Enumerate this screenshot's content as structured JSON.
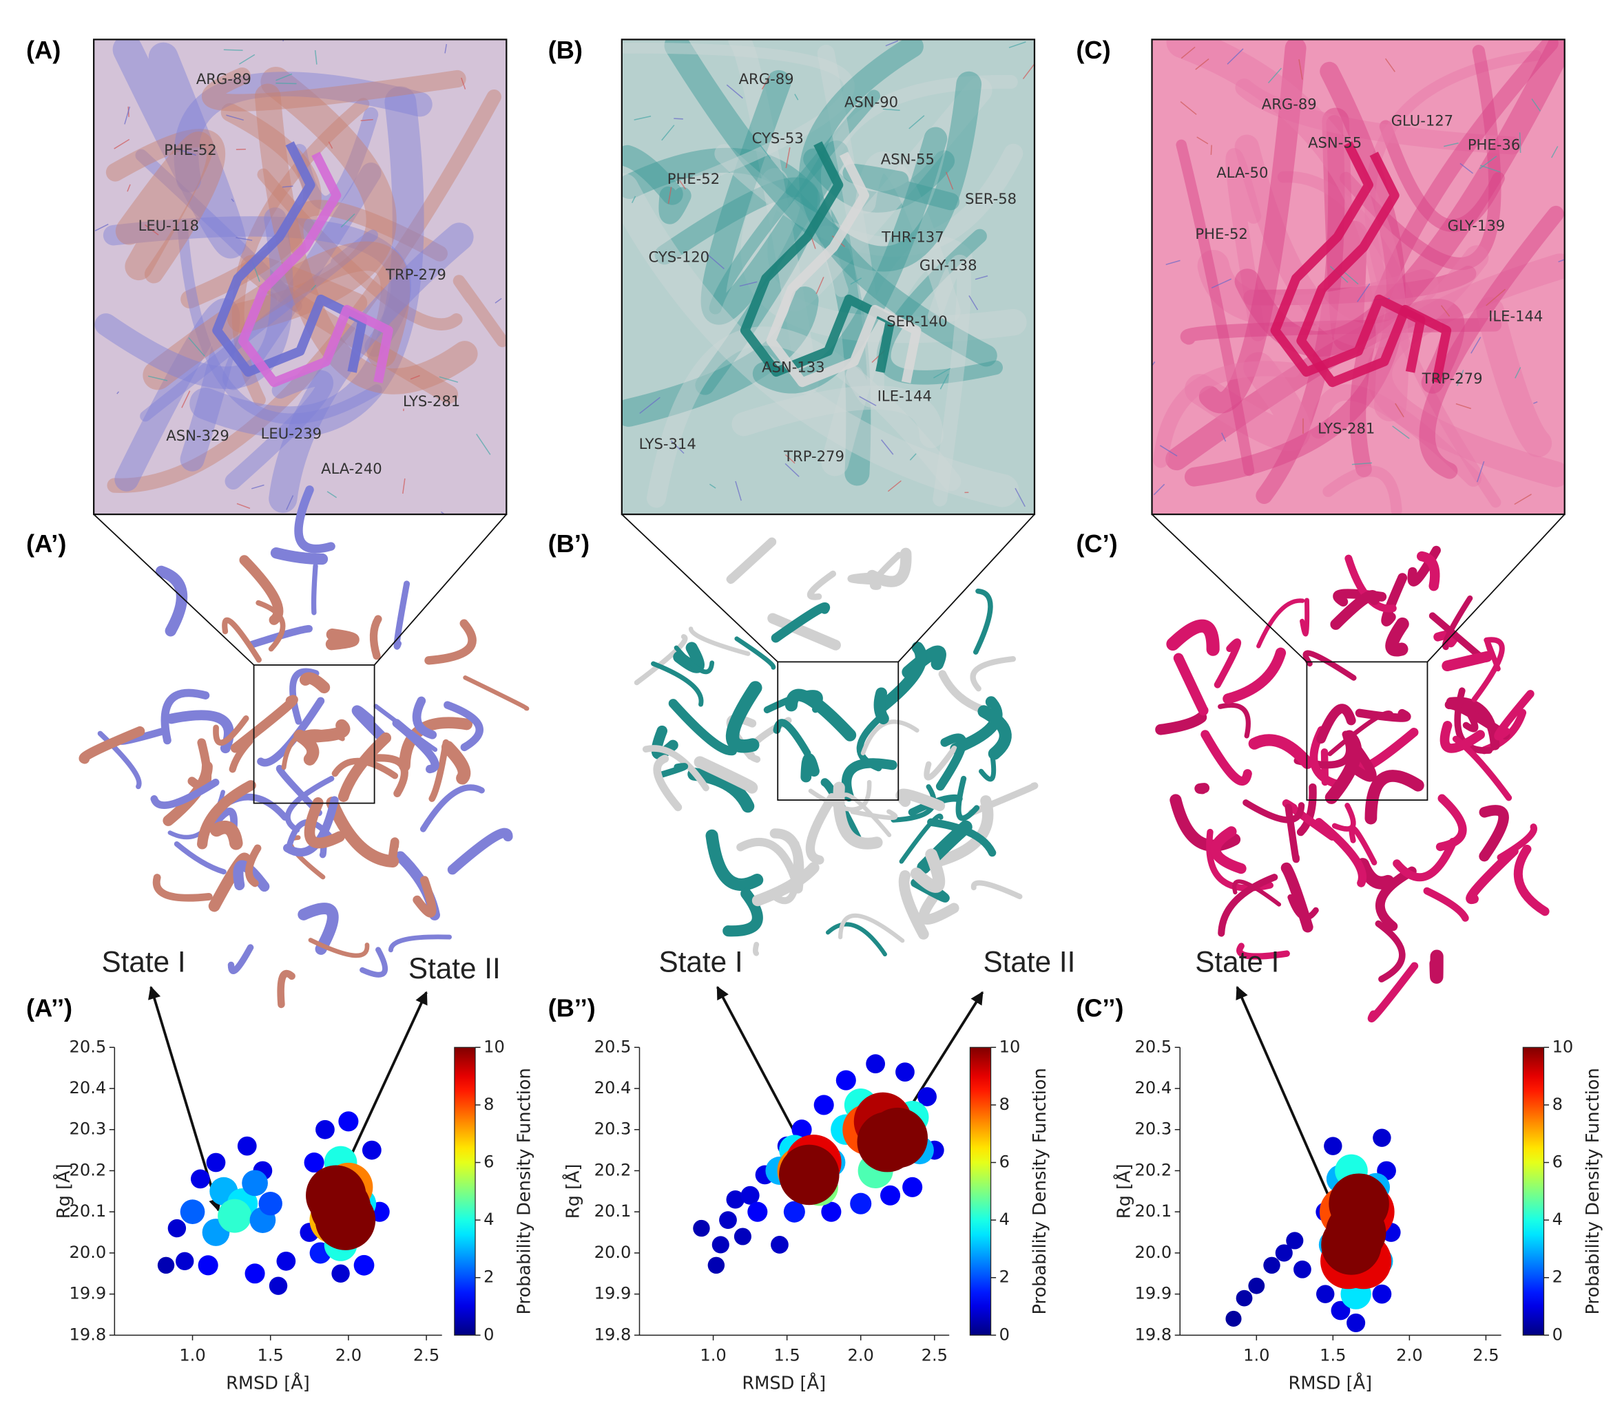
{
  "panels": [
    {
      "label": "(A)",
      "residues": [
        "ARG-89",
        "PHE-52",
        "LEU-118",
        "TRP-279",
        "LYS-281",
        "ASN-329",
        "LEU-239",
        "ALA-240"
      ]
    },
    {
      "label": "(B)",
      "residues": [
        "ARG-89",
        "ASN-90",
        "CYS-53",
        "ASN-55",
        "PHE-52",
        "SER-58",
        "THR-137",
        "GLY-138",
        "CYS-120",
        "SER-140",
        "ASN-133",
        "ILE-144",
        "LYS-314",
        "TRP-279"
      ]
    },
    {
      "label": "(C)",
      "residues": [
        "ARG-89",
        "GLU-127",
        "ASN-55",
        "PHE-36",
        "ALA-50",
        "GLY-139",
        "PHE-52",
        "ILE-144",
        "TRP-279",
        "LYS-281"
      ]
    }
  ],
  "structures": [
    {
      "label": "(A’)",
      "states": [
        {
          "text": "State I",
          "color": "#c8806f"
        },
        {
          "text": "State II",
          "color": "#7f80d8"
        }
      ]
    },
    {
      "label": "(B’)",
      "states": [
        {
          "text": "State I",
          "color": "#8a8a8a"
        },
        {
          "text": "State II",
          "color": "#2a8a8a"
        }
      ]
    },
    {
      "label": "(C’)",
      "states": [
        {
          "text": "State I",
          "color": "#cc1166"
        }
      ]
    }
  ],
  "chart_data": [
    {
      "type": "scatter",
      "label": "(A’’)",
      "xlabel": "RMSD [Å]",
      "ylabel": "Rg [Å]",
      "colorbar_label": "Probability Density Function",
      "colormap": "jet",
      "xlim": [
        0.5,
        2.6
      ],
      "xticks": [
        {
          "value": 1,
          "label": "1.0"
        },
        1.5,
        {
          "value": 2,
          "label": "2.0"
        },
        2.5
      ],
      "ylim": [
        19.8,
        20.5
      ],
      "yticks": [
        19.8,
        19.9,
        {
          "value": 20,
          "label": "20.0"
        },
        20.1,
        20.2,
        20.3,
        20.4,
        20.5
      ],
      "clim": [
        0,
        10
      ],
      "cticks": [
        0,
        2,
        4,
        6,
        8,
        10
      ],
      "x": [
        0.83,
        0.9,
        0.95,
        1.05,
        1.15,
        1.35,
        1.45,
        1.55,
        1.6,
        1.4,
        1.1,
        1.75,
        1.78,
        1.85,
        2.0,
        2.15,
        2.2,
        2.1,
        1.95,
        1.82,
        1.0,
        1.15,
        1.2,
        1.32,
        1.27,
        1.45,
        1.5,
        1.4,
        1.85,
        2.08,
        1.95,
        1.95,
        1.9,
        2.0,
        1.95,
        1.92,
        1.98
      ],
      "values": [
        19.97,
        20.06,
        19.98,
        20.18,
        20.22,
        20.26,
        20.2,
        19.92,
        19.98,
        19.95,
        19.97,
        20.05,
        20.22,
        20.3,
        20.32,
        20.25,
        20.1,
        19.97,
        19.95,
        20.0,
        20.1,
        20.05,
        20.15,
        20.12,
        20.09,
        20.08,
        20.12,
        20.17,
        20.12,
        20.12,
        20.22,
        20.02,
        20.08,
        20.16,
        20.11,
        20.14,
        20.08
      ],
      "density": [
        0.5,
        0.8,
        0.8,
        1,
        1,
        1,
        1,
        0.8,
        1,
        1.2,
        1.2,
        1,
        1.2,
        1,
        1.2,
        1,
        1.2,
        1.3,
        0.8,
        1.5,
        2.2,
        2.8,
        3,
        3.5,
        4.2,
        2.5,
        2,
        2.5,
        3,
        3.5,
        4,
        4,
        7,
        7.5,
        10,
        10,
        10
      ]
    },
    {
      "type": "scatter",
      "label": "(B’’)",
      "xlabel": "RMSD [Å]",
      "ylabel": "Rg [Å]",
      "colorbar_label": "Probability Density Function",
      "colormap": "jet",
      "xlim": [
        0.5,
        2.6
      ],
      "xticks": [
        {
          "value": 1,
          "label": "1.0"
        },
        1.5,
        {
          "value": 2,
          "label": "2.0"
        },
        2.5
      ],
      "ylim": [
        19.8,
        20.5
      ],
      "yticks": [
        19.8,
        19.9,
        {
          "value": 20,
          "label": "20.0"
        },
        20.1,
        20.2,
        20.3,
        20.4,
        20.5
      ],
      "clim": [
        0,
        10
      ],
      "cticks": [
        0,
        2,
        4,
        6,
        8,
        10
      ],
      "x": [
        0.92,
        1.02,
        1.05,
        1.1,
        1.15,
        1.25,
        1.2,
        1.35,
        1.45,
        1.5,
        1.6,
        1.75,
        1.9,
        2.1,
        2.3,
        2.45,
        2.5,
        2.35,
        2.2,
        2.0,
        1.8,
        1.55,
        1.3,
        1.45,
        1.55,
        1.8,
        1.9,
        2.0,
        2.35,
        2.4,
        2.1,
        1.72,
        1.6,
        1.68,
        1.65,
        2.05,
        2.15,
        2.25,
        2.18
      ],
      "values": [
        20.06,
        19.97,
        20.02,
        20.08,
        20.13,
        20.14,
        20.04,
        20.19,
        20.02,
        20.26,
        20.3,
        20.36,
        20.42,
        20.46,
        20.44,
        20.38,
        20.25,
        20.16,
        20.14,
        20.12,
        20.1,
        20.1,
        20.1,
        20.2,
        20.25,
        20.22,
        20.3,
        20.36,
        20.33,
        20.25,
        20.2,
        20.16,
        20.2,
        20.22,
        20.19,
        20.3,
        20.32,
        20.28,
        20.27
      ],
      "density": [
        0.5,
        0.5,
        0.6,
        0.7,
        0.8,
        0.9,
        0.6,
        1,
        0.7,
        1,
        1.2,
        1.2,
        1.2,
        1,
        1,
        1,
        1,
        1.2,
        1.2,
        1.5,
        1.2,
        1.5,
        1.2,
        3,
        3.5,
        3,
        3.5,
        4,
        4,
        3,
        4.5,
        5,
        7.5,
        9,
        10,
        8,
        9.5,
        10,
        10
      ]
    },
    {
      "type": "scatter",
      "label": "(C’’)",
      "xlabel": "RMSD [Å]",
      "ylabel": "Rg [Å]",
      "colorbar_label": "Probability Density Function",
      "colormap": "jet",
      "xlim": [
        0.5,
        2.6
      ],
      "xticks": [
        {
          "value": 1,
          "label": "1.0"
        },
        1.5,
        {
          "value": 2,
          "label": "2.0"
        },
        2.5
      ],
      "ylim": [
        19.8,
        20.5
      ],
      "yticks": [
        19.8,
        19.9,
        {
          "value": 20,
          "label": "20.0"
        },
        20.1,
        20.2,
        20.3,
        20.4,
        20.5
      ],
      "clim": [
        0,
        10
      ],
      "cticks": [
        0,
        2,
        4,
        6,
        8,
        10
      ],
      "x": [
        0.85,
        0.92,
        1.0,
        1.1,
        1.18,
        1.25,
        1.3,
        1.45,
        1.5,
        1.52,
        1.82,
        1.85,
        1.88,
        1.82,
        1.65,
        1.55,
        1.45,
        1.5,
        1.55,
        1.78,
        1.8,
        1.65,
        1.62,
        1.58,
        1.72,
        1.6,
        1.7,
        1.65,
        1.67,
        1.62
      ],
      "values": [
        19.84,
        19.89,
        19.92,
        19.97,
        20.0,
        20.03,
        19.96,
        19.9,
        20.26,
        20.18,
        20.28,
        20.2,
        20.05,
        19.9,
        19.83,
        19.86,
        20.1,
        20.02,
        20.18,
        20.16,
        19.98,
        19.9,
        20.2,
        20.1,
        20.1,
        19.98,
        19.98,
        20.05,
        20.12,
        20.02
      ],
      "density": [
        0.3,
        0.4,
        0.4,
        0.5,
        0.6,
        0.6,
        0.7,
        0.8,
        0.8,
        1,
        0.8,
        1,
        1,
        1,
        0.9,
        1,
        1,
        3,
        3,
        3,
        3,
        3.5,
        4,
        8,
        9,
        9,
        9,
        10,
        10,
        10
      ]
    }
  ]
}
